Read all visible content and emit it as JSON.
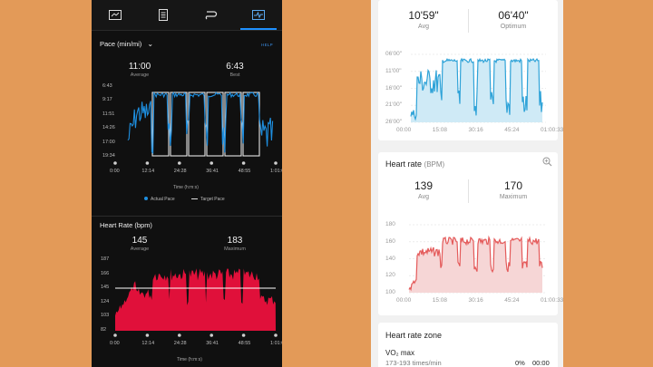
{
  "left": {
    "tabs": [
      {
        "icon": "summary-icon"
      },
      {
        "icon": "laps-icon"
      },
      {
        "icon": "route-icon"
      },
      {
        "icon": "charts-icon",
        "active": true
      }
    ],
    "pace": {
      "title": "Pace (min/mi)",
      "help": "HELP",
      "avg_value": "11:00",
      "avg_label": "Average",
      "best_value": "6:43",
      "best_label": "Best",
      "y_ticks": [
        "6:43",
        "9:17",
        "11:51",
        "14:26",
        "17:00",
        "19:34"
      ],
      "x_ticks": [
        "0:00",
        "12:14",
        "24:28",
        "36:41",
        "48:55",
        "1:01:09"
      ],
      "x_title": "Time (h:m:s)",
      "legend_actual": "Actual Pace",
      "legend_target": "Target Pace"
    },
    "hr": {
      "title": "Heart Rate (bpm)",
      "avg_value": "145",
      "avg_label": "Average",
      "max_value": "183",
      "max_label": "Maximum",
      "y_ticks": [
        "187",
        "166",
        "145",
        "124",
        "103",
        "82"
      ],
      "x_ticks": [
        "0:00",
        "12:14",
        "24:28",
        "36:41",
        "48:55",
        "1:01:09"
      ],
      "x_title": "Time (h:m:s)"
    }
  },
  "right": {
    "pace": {
      "avg_value": "10'59\"",
      "avg_label": "Avg",
      "opt_value": "06'40\"",
      "opt_label": "Optimum",
      "y_ticks": [
        "06'00\"",
        "11'00\"",
        "16'00\"",
        "21'00\"",
        "26'00\""
      ],
      "x_ticks": [
        "00:00",
        "15:08",
        "30:16",
        "45:24",
        "01:00:33"
      ]
    },
    "hr": {
      "title": "Heart rate",
      "unit": "(BPM)",
      "avg_value": "139",
      "avg_label": "Avg",
      "max_value": "170",
      "max_label": "Maximum",
      "y_ticks": [
        "180",
        "160",
        "140",
        "120",
        "100"
      ],
      "x_ticks": [
        "00:00",
        "15:08",
        "30:16",
        "45:24",
        "01:00:33"
      ]
    },
    "zone": {
      "title": "Heart rate zone",
      "row_label": "VO₂ max",
      "row_range": "173-193 times/min",
      "row_pct": "0%",
      "row_time": "00:00"
    }
  },
  "colors": {
    "bg": "#e39a58",
    "pace_blue": "#1e8fe0",
    "hr_red": "#e0103a",
    "light_blue": "#2fa3d8",
    "light_red": "#e45a5a"
  }
}
